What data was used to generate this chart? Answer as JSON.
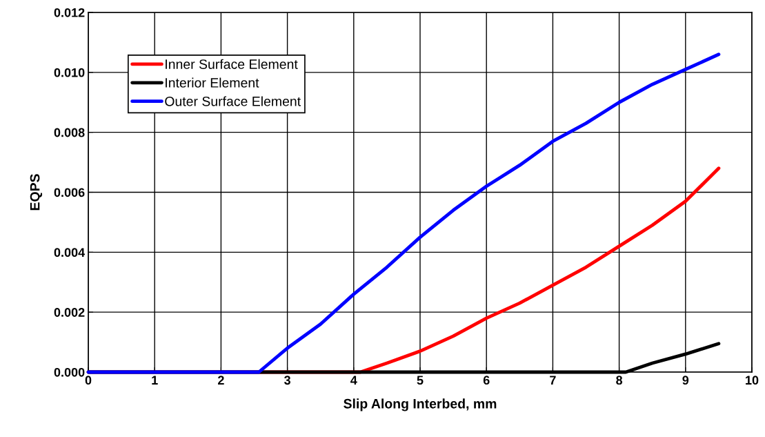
{
  "chart_data": {
    "type": "line",
    "xlabel": "Slip Along Interbed, mm",
    "ylabel": "EQPS",
    "xlim": [
      0,
      10
    ],
    "ylim": [
      0,
      0.012
    ],
    "xticks": [
      0,
      1,
      2,
      3,
      4,
      5,
      6,
      7,
      8,
      9,
      10
    ],
    "yticks": [
      {
        "value": 0,
        "label": "0.000"
      },
      {
        "value": 0.002,
        "label": "0.002"
      },
      {
        "value": 0.004,
        "label": "0.004"
      },
      {
        "value": 0.006,
        "label": "0.006"
      },
      {
        "value": 0.008,
        "label": "0.008"
      },
      {
        "value": 0.01,
        "label": "0.010"
      },
      {
        "value": 0.012,
        "label": "0.012"
      }
    ],
    "grid": true,
    "legend": "top left",
    "marker": "none",
    "line_style": "solid",
    "series": [
      {
        "name": "Inner Surface Element",
        "color": "#ff0000",
        "x": [
          0,
          4.1,
          4.5,
          5,
          5.5,
          6,
          6.5,
          7,
          7.5,
          8,
          8.5,
          9,
          9.5
        ],
        "values": [
          0,
          0,
          0.0003,
          0.0007,
          0.0012,
          0.0018,
          0.0023,
          0.0029,
          0.0035,
          0.0042,
          0.0049,
          0.0057,
          0.0068
        ]
      },
      {
        "name": "Interior Element",
        "color": "#000000",
        "x": [
          0,
          8.1,
          8.5,
          9,
          9.5
        ],
        "values": [
          0,
          0,
          0.0003,
          0.0006,
          0.00095
        ]
      },
      {
        "name": "Outer Surface Element",
        "color": "#0000ff",
        "x": [
          0,
          2.57,
          3,
          3.5,
          4,
          4.5,
          5,
          5.5,
          6,
          6.5,
          7,
          7.5,
          8,
          8.5,
          9,
          9.5
        ],
        "values": [
          0,
          0,
          0.0008,
          0.0016,
          0.0026,
          0.0035,
          0.0045,
          0.0054,
          0.0062,
          0.0069,
          0.0077,
          0.0083,
          0.009,
          0.0096,
          0.0101,
          0.0106
        ]
      }
    ]
  }
}
